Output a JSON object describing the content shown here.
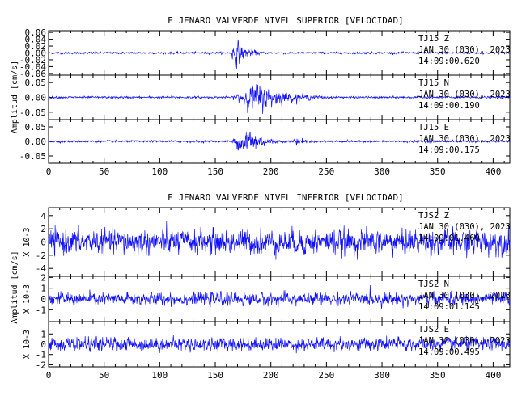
{
  "chart_data": [
    {
      "type": "line",
      "title": "E JENARO VALVERDE NIVEL SUPERIOR [VELOCIDAD]",
      "ylabel": "Amplitud [cm/s]",
      "xlim": [
        0,
        415
      ],
      "x_ticks": [
        "0",
        "50",
        "100",
        "150",
        "200",
        "250",
        "300",
        "350",
        "400"
      ],
      "panels": [
        {
          "channel": "TJ15   Z",
          "date": "JAN 30 (030), 2023",
          "time": "14:09:00.620",
          "ylim": [
            -0.065,
            0.065
          ],
          "y_ticks": [
            "0.06",
            "0.04",
            "0.02",
            "0.00",
            "-0.02",
            "-0.04",
            "-0.06"
          ],
          "signal": {
            "noise": 0.0025,
            "events": [
              {
                "start": 163,
                "peak": 168,
                "end": 200,
                "amp": 0.035
              }
            ]
          }
        },
        {
          "channel": "TJ15   N",
          "date": "JAN 30 (030), 2023",
          "time": "14:09:00.190",
          "ylim": [
            -0.075,
            0.075
          ],
          "y_ticks": [
            "0.05",
            "0.00",
            "-0.05"
          ],
          "signal": {
            "noise": 0.003,
            "events": [
              {
                "start": 163,
                "peak": 188,
                "end": 265,
                "amp": 0.045
              }
            ]
          }
        },
        {
          "channel": "TJ15   E",
          "date": "JAN 30 (030), 2023",
          "time": "14:09:00.175",
          "ylim": [
            -0.075,
            0.075
          ],
          "y_ticks": [
            "0.05",
            "0.00",
            "-0.05"
          ],
          "signal": {
            "noise": 0.003,
            "events": [
              {
                "start": 163,
                "peak": 180,
                "end": 215,
                "amp": 0.05
              },
              {
                "start": 212,
                "peak": 225,
                "end": 250,
                "amp": 0.012
              }
            ]
          }
        }
      ]
    },
    {
      "type": "line",
      "title": "E JENARO VALVERDE NIVEL INFERIOR [VELOCIDAD]",
      "ylabel": "Amplitud [cm/s]",
      "xlim": [
        0,
        415
      ],
      "x_ticks": [
        "0",
        "50",
        "100",
        "150",
        "200",
        "250",
        "300",
        "350",
        "400"
      ],
      "panels": [
        {
          "channel": "TJS2   Z",
          "date": "JAN 30 (030), 2023",
          "time": "14:09:01.460",
          "scale": "X 10-3",
          "ylim": [
            -5.2,
            5.2
          ],
          "y_ticks": [
            "4",
            "2",
            "0",
            "-2",
            "-4"
          ],
          "signal": {
            "noise": 1.6,
            "events": []
          }
        },
        {
          "channel": "TJS2   N",
          "date": "JAN 30 (030), 2023",
          "time": "14:09:01.145",
          "scale": "X 10-3",
          "ylim": [
            -2.1,
            2.1
          ],
          "y_ticks": [
            "2",
            "1",
            "0",
            "-1"
          ],
          "signal": {
            "noise": 0.5,
            "events": []
          }
        },
        {
          "channel": "TJS2   E",
          "date": "JAN 30 (030), 2023",
          "time": "14:09:00.495",
          "scale": "X 10-3",
          "ylim": [
            -2.2,
            2.2
          ],
          "y_ticks": [
            "1",
            "0",
            "-1",
            "-2"
          ],
          "signal": {
            "noise": 0.55,
            "events": []
          }
        }
      ]
    }
  ]
}
